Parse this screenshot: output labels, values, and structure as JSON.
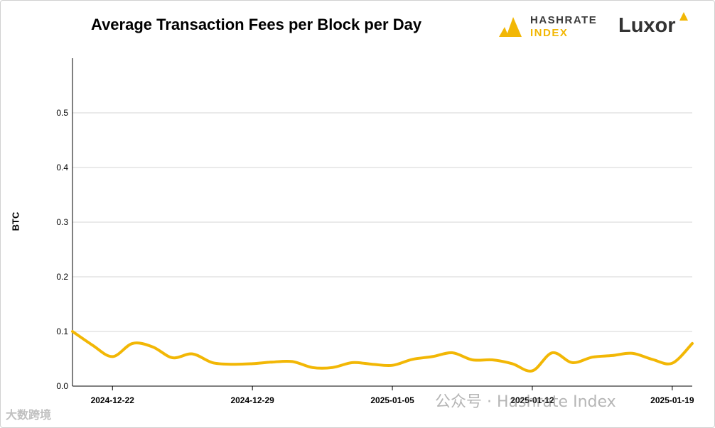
{
  "logos": {
    "hashrate_word1": "HASHRATE",
    "hashrate_word2": "INDEX",
    "luxor_word": "Luxor"
  },
  "watermarks": {
    "right": "公众号 · Hashrate Index",
    "left": "大数跨境"
  },
  "colors": {
    "line": "#f2b705",
    "grid": "#d4d4d4",
    "axis": "#000000"
  },
  "chart_data": {
    "type": "line",
    "title": "Average Transaction Fees per Block per Day",
    "xlabel": "",
    "ylabel": "BTC",
    "ylim": [
      0,
      0.6
    ],
    "yticks": [
      0.0,
      0.1,
      0.2,
      0.3,
      0.4,
      0.5
    ],
    "ytick_labels": [
      "0.0",
      "0.1",
      "0.2",
      "0.3",
      "0.4",
      "0.5"
    ],
    "xtick_labels": [
      "2024-12-22",
      "2024-12-29",
      "2025-01-05",
      "2025-01-12",
      "2025-01-19"
    ],
    "grid": true,
    "x": [
      "2024-12-20",
      "2024-12-21",
      "2024-12-22",
      "2024-12-23",
      "2024-12-24",
      "2024-12-25",
      "2024-12-26",
      "2024-12-27",
      "2024-12-28",
      "2024-12-29",
      "2024-12-30",
      "2024-12-31",
      "2025-01-01",
      "2025-01-02",
      "2025-01-03",
      "2025-01-04",
      "2025-01-05",
      "2025-01-06",
      "2025-01-07",
      "2025-01-08",
      "2025-01-09",
      "2025-01-10",
      "2025-01-11",
      "2025-01-12",
      "2025-01-13",
      "2025-01-14",
      "2025-01-15",
      "2025-01-16",
      "2025-01-17",
      "2025-01-18",
      "2025-01-19",
      "2025-01-20"
    ],
    "series": [
      {
        "values": [
          0.1,
          0.075,
          0.054,
          0.078,
          0.072,
          0.052,
          0.059,
          0.043,
          0.04,
          0.041,
          0.044,
          0.045,
          0.034,
          0.034,
          0.043,
          0.04,
          0.038,
          0.049,
          0.054,
          0.061,
          0.048,
          0.048,
          0.041,
          0.028,
          0.061,
          0.043,
          0.053,
          0.056,
          0.06,
          0.049,
          0.042,
          0.078
        ]
      }
    ]
  }
}
